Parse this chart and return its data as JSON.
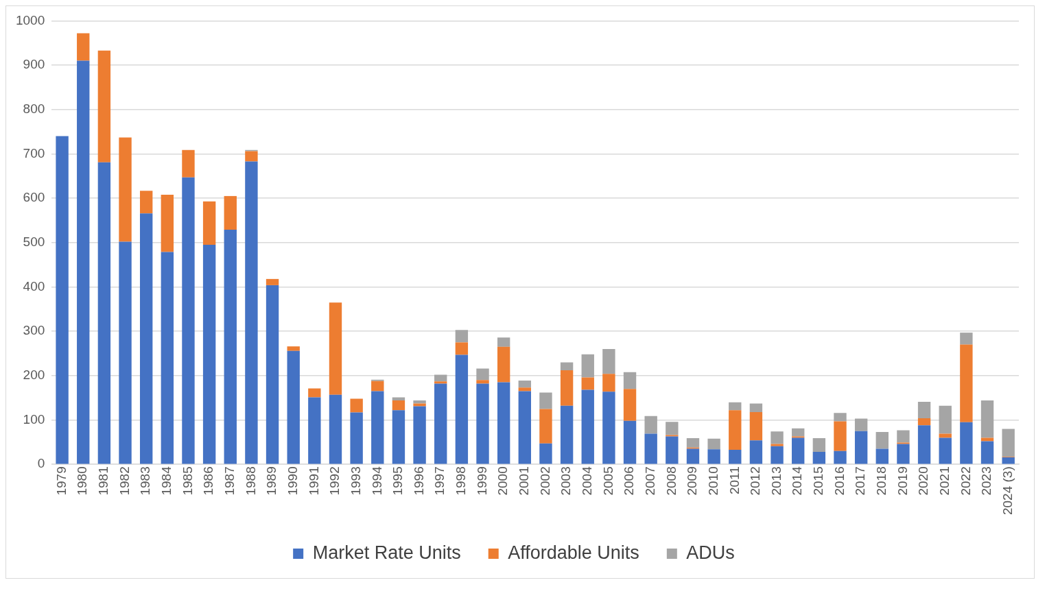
{
  "chart_data": {
    "type": "bar",
    "stacked": true,
    "categories": [
      "1979",
      "1980",
      "1981",
      "1982",
      "1983",
      "1984",
      "1985",
      "1986",
      "1987",
      "1988",
      "1989",
      "1990",
      "1991",
      "1992",
      "1993",
      "1994",
      "1995",
      "1996",
      "1997",
      "1998",
      "1999",
      "2000",
      "2001",
      "2002",
      "2003",
      "2004",
      "2005",
      "2006",
      "2007",
      "2008",
      "2009",
      "2010",
      "2011",
      "2012",
      "2013",
      "2014",
      "2015",
      "2016",
      "2017",
      "2018",
      "2019",
      "2020",
      "2021",
      "2022",
      "2023",
      "2024 (3)"
    ],
    "series": [
      {
        "name": "Market Rate Units",
        "color": "#4472c4",
        "values": [
          740,
          910,
          681,
          502,
          566,
          479,
          647,
          495,
          529,
          683,
          404,
          256,
          151,
          157,
          117,
          165,
          122,
          131,
          182,
          247,
          182,
          185,
          165,
          47,
          132,
          168,
          164,
          98,
          69,
          63,
          35,
          34,
          33,
          54,
          41,
          60,
          28,
          30,
          75,
          35,
          46,
          88,
          60,
          95,
          52,
          16
        ]
      },
      {
        "name": "Affordable Units",
        "color": "#ed7d31",
        "values": [
          0,
          62,
          252,
          235,
          51,
          129,
          62,
          98,
          76,
          23,
          14,
          10,
          20,
          208,
          31,
          23,
          22,
          6,
          5,
          28,
          8,
          80,
          8,
          78,
          80,
          28,
          40,
          72,
          0,
          3,
          3,
          0,
          89,
          64,
          5,
          3,
          0,
          67,
          0,
          0,
          3,
          16,
          9,
          175,
          8,
          1
        ]
      },
      {
        "name": "ADUs",
        "color": "#a5a5a5",
        "values": [
          0,
          0,
          0,
          0,
          0,
          0,
          0,
          0,
          0,
          3,
          0,
          0,
          0,
          0,
          0,
          3,
          7,
          7,
          15,
          28,
          26,
          21,
          16,
          37,
          18,
          52,
          56,
          38,
          40,
          30,
          21,
          24,
          18,
          19,
          28,
          18,
          31,
          19,
          28,
          38,
          28,
          37,
          63,
          27,
          84,
          63
        ]
      }
    ],
    "ylim": [
      0,
      1000
    ],
    "yticks": [
      0,
      100,
      200,
      300,
      400,
      500,
      600,
      700,
      800,
      900,
      1000
    ],
    "grid": "y",
    "legend": "bottom"
  }
}
